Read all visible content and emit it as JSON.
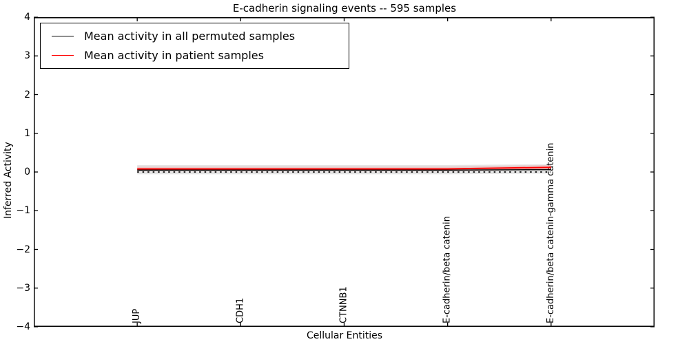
{
  "figure": {
    "background": "#ffffff",
    "frame_color": "#000000"
  },
  "chart_data": {
    "type": "line",
    "title": "E-cadherin signaling events -- 595 samples",
    "xlabel": "Cellular Entities",
    "ylabel": "Inferred Activity",
    "categories": [
      "JUP",
      "CDH1",
      "CTNNB1",
      "E-cadherin/beta catenin",
      "E-cadherin/beta catenin-gamma catenin"
    ],
    "xlim": [
      -1,
      5
    ],
    "ylim": [
      -4,
      4
    ],
    "yticks": [
      4,
      3,
      2,
      1,
      0,
      -1,
      -2,
      -3,
      -4
    ],
    "ytick_labels": [
      "4",
      "3",
      "2",
      "1",
      "0",
      "−1",
      "−2",
      "−3",
      "−4"
    ],
    "grid": false,
    "legend_position": "upper left",
    "series": [
      {
        "name": "Mean activity in all permuted samples",
        "color": "#000000",
        "linestyle": "solid",
        "linewidth": 1.5,
        "values": [
          0.05,
          0.05,
          0.05,
          0.05,
          0.06
        ]
      },
      {
        "name": "Mean activity in patient samples",
        "color": "#ff0000",
        "linestyle": "solid",
        "linewidth": 2,
        "values": [
          0.08,
          0.08,
          0.08,
          0.08,
          0.12
        ]
      }
    ],
    "zero_line": {
      "value": 0,
      "color": "#000000",
      "linestyle": "dotted"
    },
    "bands": [
      {
        "name": "permuted-samples-band",
        "color": "#000000",
        "opacity": 0.1,
        "upper": [
          0.18,
          0.18,
          0.18,
          0.18,
          0.2
        ],
        "lower": [
          -0.06,
          -0.06,
          -0.06,
          -0.06,
          -0.04
        ]
      },
      {
        "name": "patient-samples-band",
        "color": "#ff0000",
        "opacity": 0.12,
        "upper": [
          0.14,
          0.14,
          0.14,
          0.14,
          0.18
        ],
        "lower": [
          0.02,
          0.02,
          0.02,
          0.02,
          0.06
        ]
      }
    ]
  }
}
